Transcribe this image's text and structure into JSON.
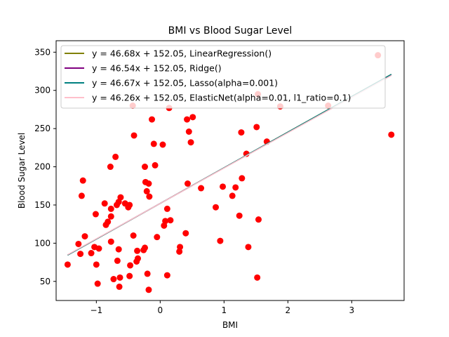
{
  "chart_data": {
    "type": "scatter",
    "title": "BMI vs Blood Sugar Level",
    "xlabel": "BMI",
    "ylabel": "Blood Sugar Level",
    "xlim": [
      -1.63,
      3.82
    ],
    "ylim": [
      25,
      365
    ],
    "xticks": [
      -1,
      0,
      1,
      2,
      3
    ],
    "yticks": [
      50,
      100,
      150,
      200,
      250,
      300,
      350
    ],
    "xtick_labels": [
      "−1",
      "0",
      "1",
      "2",
      "3"
    ],
    "ytick_labels": [
      "50",
      "100",
      "150",
      "200",
      "250",
      "300",
      "350"
    ],
    "grid": false,
    "legend_position": "upper-left",
    "scatter_color": "#ff0000",
    "points": [
      [
        -1.45,
        72
      ],
      [
        -1.28,
        99
      ],
      [
        -1.25,
        86
      ],
      [
        -1.23,
        162
      ],
      [
        -1.21,
        182
      ],
      [
        -1.18,
        109
      ],
      [
        -1.08,
        87
      ],
      [
        -1.03,
        95
      ],
      [
        -1.01,
        138
      ],
      [
        -1.0,
        72
      ],
      [
        -0.98,
        47
      ],
      [
        -0.96,
        93
      ],
      [
        -0.87,
        152
      ],
      [
        -0.85,
        124
      ],
      [
        -0.82,
        128
      ],
      [
        -0.78,
        200
      ],
      [
        -0.77,
        135
      ],
      [
        -0.77,
        145
      ],
      [
        -0.77,
        102
      ],
      [
        -0.73,
        53
      ],
      [
        -0.7,
        213
      ],
      [
        -0.68,
        150
      ],
      [
        -0.67,
        77
      ],
      [
        -0.65,
        154
      ],
      [
        -0.65,
        92
      ],
      [
        -0.64,
        43
      ],
      [
        -0.63,
        55
      ],
      [
        -0.62,
        160
      ],
      [
        -0.55,
        152
      ],
      [
        -0.5,
        147
      ],
      [
        -0.48,
        150
      ],
      [
        -0.48,
        57
      ],
      [
        -0.47,
        71
      ],
      [
        -0.43,
        280
      ],
      [
        -0.42,
        110
      ],
      [
        -0.41,
        241
      ],
      [
        -0.37,
        76
      ],
      [
        -0.36,
        90
      ],
      [
        -0.35,
        80
      ],
      [
        -0.26,
        91
      ],
      [
        -0.24,
        94
      ],
      [
        -0.24,
        200
      ],
      [
        -0.23,
        180
      ],
      [
        -0.21,
        168
      ],
      [
        -0.2,
        60
      ],
      [
        -0.18,
        178
      ],
      [
        -0.18,
        39
      ],
      [
        -0.17,
        161
      ],
      [
        -0.13,
        262
      ],
      [
        -0.1,
        230
      ],
      [
        -0.08,
        202
      ],
      [
        -0.05,
        108
      ],
      [
        0.04,
        229
      ],
      [
        0.06,
        123
      ],
      [
        0.08,
        129
      ],
      [
        0.11,
        145
      ],
      [
        0.11,
        58
      ],
      [
        0.14,
        277
      ],
      [
        0.16,
        130
      ],
      [
        0.3,
        89
      ],
      [
        0.31,
        95
      ],
      [
        0.4,
        113
      ],
      [
        0.42,
        262
      ],
      [
        0.43,
        178
      ],
      [
        0.45,
        246
      ],
      [
        0.48,
        232
      ],
      [
        0.51,
        265
      ],
      [
        0.64,
        172
      ],
      [
        0.87,
        147
      ],
      [
        0.94,
        103
      ],
      [
        0.98,
        174
      ],
      [
        1.13,
        162
      ],
      [
        1.18,
        173
      ],
      [
        1.24,
        136
      ],
      [
        1.27,
        245
      ],
      [
        1.28,
        185
      ],
      [
        1.35,
        217
      ],
      [
        1.38,
        95
      ],
      [
        1.51,
        252
      ],
      [
        1.52,
        55
      ],
      [
        1.54,
        131
      ],
      [
        1.53,
        295
      ],
      [
        1.67,
        233
      ],
      [
        1.88,
        279
      ],
      [
        2.63,
        280
      ],
      [
        3.41,
        346
      ],
      [
        3.62,
        242
      ]
    ],
    "series": [
      {
        "name": "y = 46.68x + 152.05, LinearRegression()",
        "slope": 46.68,
        "intercept": 152.05,
        "color": "#808000"
      },
      {
        "name": "y = 46.54x + 152.05, Ridge()",
        "slope": 46.54,
        "intercept": 152.05,
        "color": "#800080"
      },
      {
        "name": "y = 46.67x + 152.05, Lasso(alpha=0.001)",
        "slope": 46.67,
        "intercept": 152.05,
        "color": "#008080"
      },
      {
        "name": "y = 46.26x + 152.05, ElasticNet(alpha=0.01, l1_ratio=0.1)",
        "slope": 46.26,
        "intercept": 152.05,
        "color": "#ffc0cb"
      }
    ],
    "line_x_range": [
      -1.45,
      3.62
    ]
  }
}
